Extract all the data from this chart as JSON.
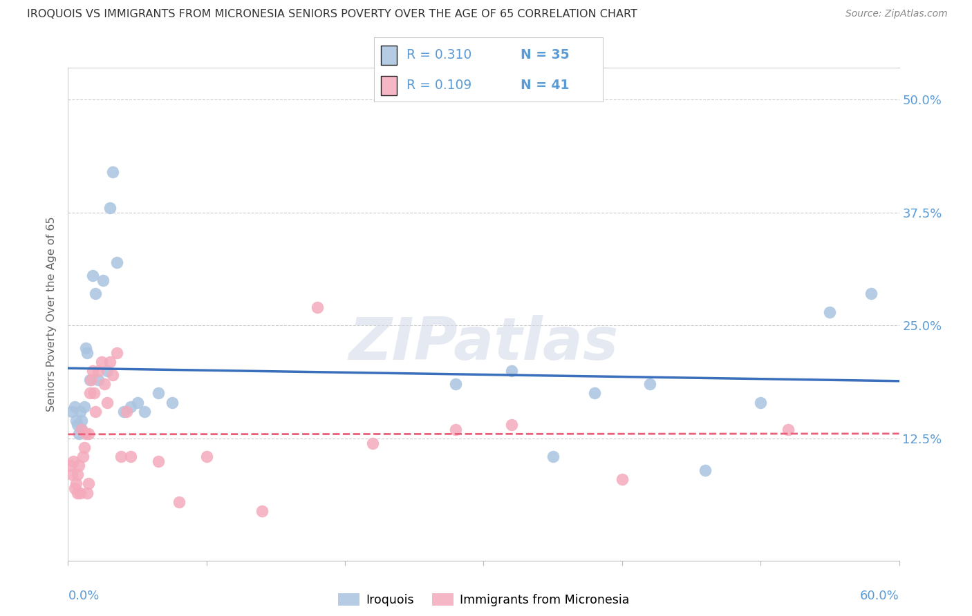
{
  "title": "IROQUOIS VS IMMIGRANTS FROM MICRONESIA SENIORS POVERTY OVER THE AGE OF 65 CORRELATION CHART",
  "source": "Source: ZipAtlas.com",
  "ylabel": "Seniors Poverty Over the Age of 65",
  "ytick_labels": [
    "12.5%",
    "25.0%",
    "37.5%",
    "50.0%"
  ],
  "ytick_values": [
    0.125,
    0.25,
    0.375,
    0.5
  ],
  "xlim": [
    0.0,
    0.6
  ],
  "ylim": [
    -0.01,
    0.535
  ],
  "legend_r1": "R = 0.310",
  "legend_n1": "N = 35",
  "legend_r2": "R = 0.109",
  "legend_n2": "N = 41",
  "color_blue": "#aac4e0",
  "color_pink": "#f4aabb",
  "color_line_blue": "#3a6fbc",
  "color_line_pink": "#e8607a",
  "color_right_labels": "#5b9bd5",
  "iroquois_x": [
    0.003,
    0.005,
    0.006,
    0.007,
    0.008,
    0.009,
    0.01,
    0.01,
    0.012,
    0.013,
    0.014,
    0.016,
    0.018,
    0.02,
    0.022,
    0.025,
    0.028,
    0.03,
    0.032,
    0.035,
    0.04,
    0.045,
    0.05,
    0.055,
    0.065,
    0.075,
    0.28,
    0.32,
    0.35,
    0.38,
    0.42,
    0.46,
    0.5,
    0.55,
    0.58
  ],
  "iroquois_y": [
    0.155,
    0.16,
    0.145,
    0.14,
    0.13,
    0.155,
    0.135,
    0.145,
    0.16,
    0.225,
    0.22,
    0.19,
    0.305,
    0.285,
    0.19,
    0.3,
    0.2,
    0.38,
    0.42,
    0.32,
    0.155,
    0.16,
    0.165,
    0.155,
    0.175,
    0.165,
    0.185,
    0.2,
    0.105,
    0.175,
    0.185,
    0.09,
    0.165,
    0.265,
    0.285
  ],
  "micronesia_x": [
    0.002,
    0.003,
    0.004,
    0.005,
    0.006,
    0.007,
    0.007,
    0.008,
    0.009,
    0.01,
    0.011,
    0.012,
    0.013,
    0.014,
    0.015,
    0.015,
    0.016,
    0.017,
    0.018,
    0.019,
    0.02,
    0.022,
    0.024,
    0.026,
    0.028,
    0.03,
    0.032,
    0.035,
    0.038,
    0.042,
    0.045,
    0.065,
    0.08,
    0.1,
    0.14,
    0.18,
    0.22,
    0.28,
    0.32,
    0.4,
    0.52
  ],
  "micronesia_y": [
    0.095,
    0.085,
    0.1,
    0.07,
    0.075,
    0.065,
    0.085,
    0.095,
    0.065,
    0.135,
    0.105,
    0.115,
    0.13,
    0.065,
    0.075,
    0.13,
    0.175,
    0.19,
    0.2,
    0.175,
    0.155,
    0.2,
    0.21,
    0.185,
    0.165,
    0.21,
    0.195,
    0.22,
    0.105,
    0.155,
    0.105,
    0.1,
    0.055,
    0.105,
    0.045,
    0.27,
    0.12,
    0.135,
    0.14,
    0.08,
    0.135
  ],
  "watermark": "ZIPatlas",
  "legend_label_blue": "Iroquois",
  "legend_label_pink": "Immigrants from Micronesia"
}
